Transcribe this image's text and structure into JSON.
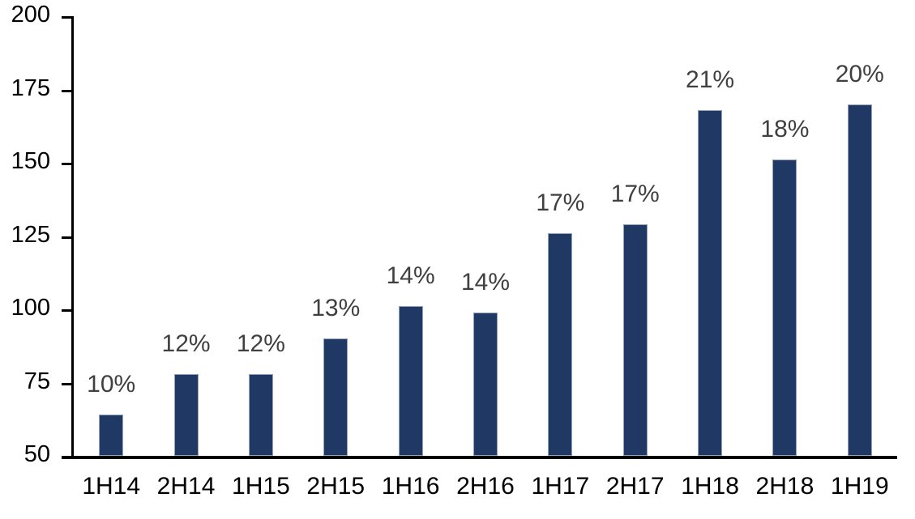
{
  "chart_data": {
    "type": "bar",
    "title": "",
    "xlabel": "",
    "ylabel": "",
    "categories": [
      "1H14",
      "2H14",
      "1H15",
      "2H15",
      "1H16",
      "2H16",
      "1H17",
      "2H17",
      "1H18",
      "2H18",
      "1H19"
    ],
    "values": [
      64,
      78,
      78,
      90,
      101,
      99,
      126,
      129,
      168,
      151,
      170
    ],
    "data_labels": [
      "10%",
      "12%",
      "12%",
      "13%",
      "14%",
      "14%",
      "17%",
      "17%",
      "21%",
      "18%",
      "20%"
    ],
    "ylim": [
      50,
      200
    ],
    "yticks": [
      50,
      75,
      100,
      125,
      150,
      175,
      200
    ],
    "grid": false,
    "legend": false,
    "colors": {
      "bar_fill": "#1F3864",
      "bar_border": "#94A4BC",
      "data_label": "#404040",
      "axis_text": "#000000",
      "axis_line": "#000000",
      "background": "#FFFFFF"
    }
  }
}
